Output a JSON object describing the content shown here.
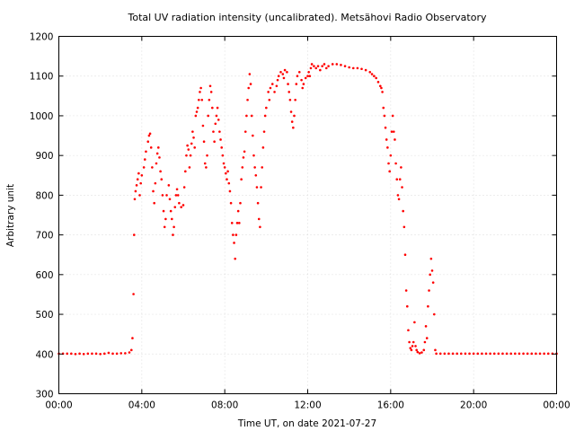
{
  "chart_data": {
    "type": "scatter",
    "title": "Total UV radiation intensity (uncalibrated). Metsähovi Radio Observatory",
    "xlabel": "Time UT, on date 2021-07-27",
    "ylabel": "Arbitrary unit",
    "xlim": [
      0,
      24
    ],
    "ylim": [
      300,
      1200
    ],
    "x_ticks": [
      0,
      4,
      8,
      12,
      16,
      20,
      24
    ],
    "x_tick_labels": [
      "00:00",
      "04:00",
      "08:00",
      "12:00",
      "16:00",
      "20:00",
      "00:00"
    ],
    "y_ticks": [
      300,
      400,
      500,
      600,
      700,
      800,
      900,
      1000,
      1100,
      1200
    ],
    "y_tick_labels": [
      "300",
      "400",
      "500",
      "600",
      "700",
      "800",
      "900",
      "1000",
      "1100",
      "1200"
    ],
    "grid": true,
    "marker_color": "#ff0000",
    "series": [
      {
        "x_unit": "hours",
        "points": [
          [
            0.0,
            401
          ],
          [
            0.2,
            401
          ],
          [
            0.4,
            401
          ],
          [
            0.6,
            401
          ],
          [
            0.8,
            400
          ],
          [
            1.0,
            401
          ],
          [
            1.2,
            400
          ],
          [
            1.4,
            401
          ],
          [
            1.6,
            401
          ],
          [
            1.8,
            401
          ],
          [
            2.0,
            400
          ],
          [
            2.2,
            401
          ],
          [
            2.4,
            403
          ],
          [
            2.6,
            401
          ],
          [
            2.8,
            401
          ],
          [
            3.0,
            402
          ],
          [
            3.2,
            402
          ],
          [
            3.4,
            404
          ],
          [
            3.5,
            410
          ],
          [
            3.55,
            440
          ],
          [
            3.6,
            551
          ],
          [
            3.63,
            700
          ],
          [
            3.66,
            790
          ],
          [
            3.7,
            810
          ],
          [
            3.75,
            825
          ],
          [
            3.8,
            840
          ],
          [
            3.85,
            855
          ],
          [
            3.9,
            800
          ],
          [
            3.95,
            830
          ],
          [
            4.0,
            850
          ],
          [
            4.1,
            870
          ],
          [
            4.15,
            890
          ],
          [
            4.2,
            910
          ],
          [
            4.3,
            935
          ],
          [
            4.35,
            950
          ],
          [
            4.4,
            955
          ],
          [
            4.45,
            920
          ],
          [
            4.5,
            870
          ],
          [
            4.55,
            810
          ],
          [
            4.6,
            780
          ],
          [
            4.65,
            830
          ],
          [
            4.7,
            880
          ],
          [
            4.75,
            905
          ],
          [
            4.8,
            920
          ],
          [
            4.85,
            895
          ],
          [
            4.9,
            860
          ],
          [
            4.95,
            840
          ],
          [
            5.0,
            800
          ],
          [
            5.05,
            760
          ],
          [
            5.1,
            720
          ],
          [
            5.15,
            740
          ],
          [
            5.2,
            800
          ],
          [
            5.3,
            825
          ],
          [
            5.35,
            790
          ],
          [
            5.4,
            760
          ],
          [
            5.45,
            740
          ],
          [
            5.5,
            700
          ],
          [
            5.55,
            720
          ],
          [
            5.6,
            770
          ],
          [
            5.65,
            800
          ],
          [
            5.7,
            815
          ],
          [
            5.75,
            800
          ],
          [
            5.8,
            780
          ],
          [
            5.9,
            770
          ],
          [
            6.0,
            775
          ],
          [
            6.05,
            820
          ],
          [
            6.1,
            860
          ],
          [
            6.15,
            900
          ],
          [
            6.2,
            925
          ],
          [
            6.25,
            915
          ],
          [
            6.3,
            870
          ],
          [
            6.35,
            900
          ],
          [
            6.4,
            930
          ],
          [
            6.45,
            960
          ],
          [
            6.5,
            945
          ],
          [
            6.55,
            920
          ],
          [
            6.6,
            1000
          ],
          [
            6.65,
            1010
          ],
          [
            6.7,
            1020
          ],
          [
            6.75,
            1040
          ],
          [
            6.8,
            1060
          ],
          [
            6.85,
            1070
          ],
          [
            6.9,
            1040
          ],
          [
            6.95,
            975
          ],
          [
            7.0,
            935
          ],
          [
            7.05,
            880
          ],
          [
            7.1,
            870
          ],
          [
            7.15,
            900
          ],
          [
            7.2,
            1000
          ],
          [
            7.25,
            1040
          ],
          [
            7.3,
            1075
          ],
          [
            7.35,
            1060
          ],
          [
            7.4,
            1020
          ],
          [
            7.45,
            960
          ],
          [
            7.5,
            935
          ],
          [
            7.55,
            980
          ],
          [
            7.6,
            1000
          ],
          [
            7.65,
            1020
          ],
          [
            7.7,
            990
          ],
          [
            7.75,
            960
          ],
          [
            7.8,
            940
          ],
          [
            7.85,
            920
          ],
          [
            7.9,
            900
          ],
          [
            7.95,
            880
          ],
          [
            8.0,
            870
          ],
          [
            8.05,
            855
          ],
          [
            8.1,
            840
          ],
          [
            8.15,
            860
          ],
          [
            8.2,
            830
          ],
          [
            8.25,
            810
          ],
          [
            8.3,
            780
          ],
          [
            8.35,
            730
          ],
          [
            8.4,
            700
          ],
          [
            8.45,
            680
          ],
          [
            8.5,
            640
          ],
          [
            8.55,
            700
          ],
          [
            8.6,
            730
          ],
          [
            8.65,
            760
          ],
          [
            8.7,
            730
          ],
          [
            8.75,
            780
          ],
          [
            8.8,
            840
          ],
          [
            8.85,
            870
          ],
          [
            8.9,
            895
          ],
          [
            8.95,
            910
          ],
          [
            9.0,
            960
          ],
          [
            9.05,
            1000
          ],
          [
            9.1,
            1040
          ],
          [
            9.15,
            1070
          ],
          [
            9.2,
            1105
          ],
          [
            9.25,
            1080
          ],
          [
            9.3,
            1000
          ],
          [
            9.35,
            950
          ],
          [
            9.4,
            900
          ],
          [
            9.45,
            870
          ],
          [
            9.5,
            850
          ],
          [
            9.55,
            820
          ],
          [
            9.6,
            780
          ],
          [
            9.65,
            740
          ],
          [
            9.7,
            720
          ],
          [
            9.75,
            820
          ],
          [
            9.8,
            870
          ],
          [
            9.85,
            920
          ],
          [
            9.9,
            960
          ],
          [
            9.95,
            1000
          ],
          [
            10.0,
            1020
          ],
          [
            10.1,
            1060
          ],
          [
            10.15,
            1040
          ],
          [
            10.2,
            1070
          ],
          [
            10.3,
            1080
          ],
          [
            10.4,
            1060
          ],
          [
            10.5,
            1075
          ],
          [
            10.55,
            1090
          ],
          [
            10.6,
            1100
          ],
          [
            10.7,
            1110
          ],
          [
            10.8,
            1105
          ],
          [
            10.85,
            1095
          ],
          [
            10.9,
            1115
          ],
          [
            11.0,
            1110
          ],
          [
            11.05,
            1080
          ],
          [
            11.1,
            1060
          ],
          [
            11.15,
            1040
          ],
          [
            11.2,
            1010
          ],
          [
            11.25,
            985
          ],
          [
            11.3,
            970
          ],
          [
            11.35,
            1000
          ],
          [
            11.4,
            1040
          ],
          [
            11.45,
            1080
          ],
          [
            11.5,
            1100
          ],
          [
            11.6,
            1110
          ],
          [
            11.7,
            1090
          ],
          [
            11.75,
            1070
          ],
          [
            11.8,
            1080
          ],
          [
            11.9,
            1095
          ],
          [
            12.0,
            1100
          ],
          [
            12.05,
            1110
          ],
          [
            12.1,
            1100
          ],
          [
            12.15,
            1120
          ],
          [
            12.2,
            1130
          ],
          [
            12.3,
            1125
          ],
          [
            12.4,
            1120
          ],
          [
            12.5,
            1125
          ],
          [
            12.6,
            1115
          ],
          [
            12.7,
            1125
          ],
          [
            12.8,
            1130
          ],
          [
            12.9,
            1120
          ],
          [
            13.0,
            1125
          ],
          [
            13.2,
            1130
          ],
          [
            13.4,
            1130
          ],
          [
            13.6,
            1128
          ],
          [
            13.8,
            1125
          ],
          [
            14.0,
            1122
          ],
          [
            14.2,
            1120
          ],
          [
            14.4,
            1120
          ],
          [
            14.6,
            1118
          ],
          [
            14.8,
            1115
          ],
          [
            15.0,
            1110
          ],
          [
            15.1,
            1105
          ],
          [
            15.2,
            1100
          ],
          [
            15.3,
            1095
          ],
          [
            15.4,
            1085
          ],
          [
            15.5,
            1075
          ],
          [
            15.55,
            1070
          ],
          [
            15.6,
            1060
          ],
          [
            15.65,
            1020
          ],
          [
            15.7,
            1000
          ],
          [
            15.75,
            970
          ],
          [
            15.8,
            940
          ],
          [
            15.85,
            920
          ],
          [
            15.9,
            880
          ],
          [
            15.95,
            860
          ],
          [
            16.0,
            900
          ],
          [
            16.05,
            960
          ],
          [
            16.1,
            1000
          ],
          [
            16.15,
            960
          ],
          [
            16.2,
            940
          ],
          [
            16.25,
            880
          ],
          [
            16.3,
            840
          ],
          [
            16.35,
            800
          ],
          [
            16.4,
            790
          ],
          [
            16.45,
            840
          ],
          [
            16.5,
            870
          ],
          [
            16.55,
            820
          ],
          [
            16.6,
            760
          ],
          [
            16.65,
            720
          ],
          [
            16.7,
            650
          ],
          [
            16.75,
            560
          ],
          [
            16.8,
            520
          ],
          [
            16.85,
            460
          ],
          [
            16.9,
            430
          ],
          [
            16.95,
            415
          ],
          [
            17.0,
            410
          ],
          [
            17.05,
            420
          ],
          [
            17.1,
            430
          ],
          [
            17.15,
            480
          ],
          [
            17.2,
            420
          ],
          [
            17.25,
            410
          ],
          [
            17.3,
            405
          ],
          [
            17.4,
            402
          ],
          [
            17.5,
            404
          ],
          [
            17.6,
            410
          ],
          [
            17.65,
            430
          ],
          [
            17.7,
            470
          ],
          [
            17.75,
            440
          ],
          [
            17.8,
            520
          ],
          [
            17.85,
            560
          ],
          [
            17.9,
            600
          ],
          [
            17.95,
            640
          ],
          [
            18.0,
            610
          ],
          [
            18.05,
            580
          ],
          [
            18.1,
            500
          ],
          [
            18.15,
            410
          ],
          [
            18.2,
            401
          ],
          [
            18.4,
            401
          ],
          [
            18.6,
            401
          ],
          [
            18.8,
            401
          ],
          [
            19.0,
            401
          ],
          [
            19.2,
            401
          ],
          [
            19.4,
            401
          ],
          [
            19.6,
            401
          ],
          [
            19.8,
            401
          ],
          [
            20.0,
            401
          ],
          [
            20.2,
            401
          ],
          [
            20.4,
            401
          ],
          [
            20.6,
            401
          ],
          [
            20.8,
            401
          ],
          [
            21.0,
            401
          ],
          [
            21.2,
            401
          ],
          [
            21.4,
            401
          ],
          [
            21.6,
            401
          ],
          [
            21.8,
            401
          ],
          [
            22.0,
            401
          ],
          [
            22.2,
            401
          ],
          [
            22.4,
            401
          ],
          [
            22.6,
            401
          ],
          [
            22.8,
            401
          ],
          [
            23.0,
            401
          ],
          [
            23.2,
            401
          ],
          [
            23.4,
            401
          ],
          [
            23.6,
            401
          ],
          [
            23.8,
            401
          ],
          [
            24.0,
            401
          ]
        ]
      }
    ]
  }
}
